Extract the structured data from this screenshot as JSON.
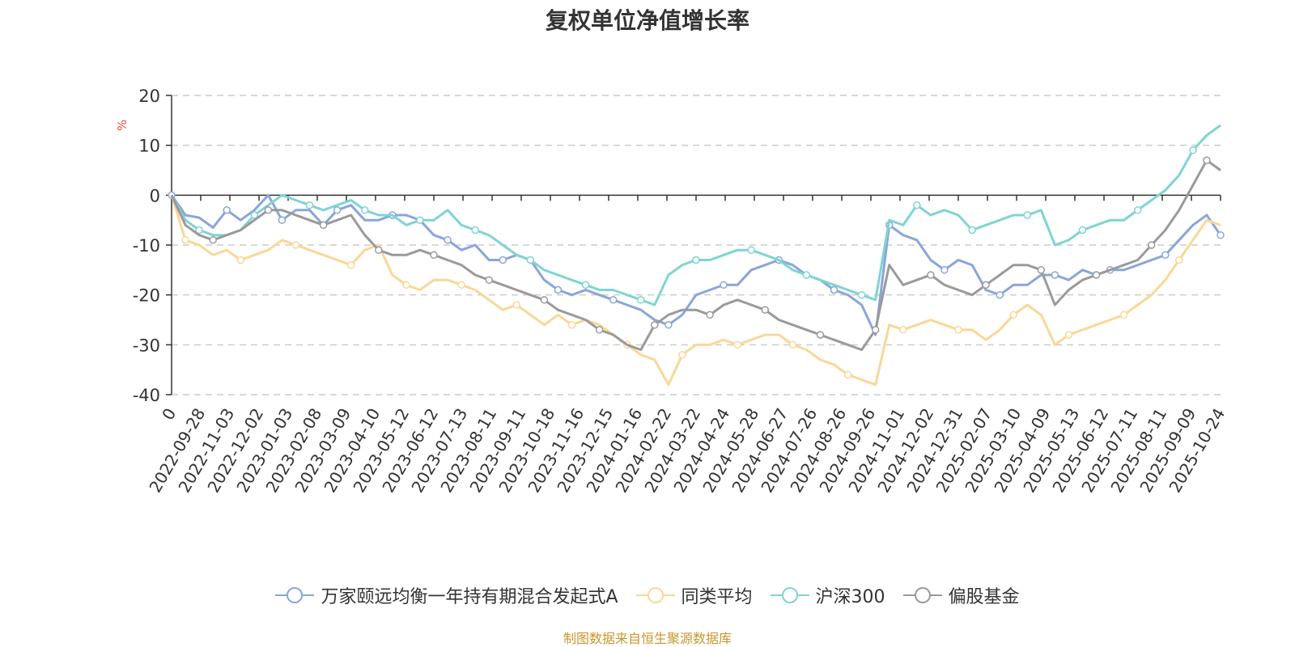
{
  "chart_data": {
    "type": "line",
    "title": "复权单位净值增长率",
    "ylabel": "%",
    "xlabel": "",
    "ylim": [
      -40,
      20
    ],
    "y_ticks": [
      20,
      10,
      0,
      -10,
      -20,
      -30,
      -40
    ],
    "x_tick_labels": [
      "0",
      "2022-09-28",
      "2022-11-03",
      "2022-12-02",
      "2023-01-03",
      "2023-02-08",
      "2023-03-09",
      "2023-04-10",
      "2023-05-12",
      "2023-06-12",
      "2023-07-13",
      "2023-08-11",
      "2023-09-11",
      "2023-10-18",
      "2023-11-16",
      "2023-12-15",
      "2024-01-16",
      "2024-02-22",
      "2024-03-22",
      "2024-04-24",
      "2024-05-28",
      "2024-06-27",
      "2024-07-26",
      "2024-08-26",
      "2024-09-26",
      "2024-11-01",
      "2024-12-02",
      "2024-12-31",
      "2025-02-07",
      "2025-03-10",
      "2025-04-09",
      "2025-05-13",
      "2025-06-12",
      "2025-07-11",
      "2025-08-11",
      "2025-09-09",
      "2025-10-24"
    ],
    "grid": "horizontal dashed",
    "legend_position": "bottom",
    "series": [
      {
        "name": "万家颐远均衡一年持有期混合发起式A",
        "color": "#8aa5db",
        "values": [
          0,
          -4,
          -4.5,
          -6.5,
          -3,
          -5,
          -3,
          0,
          -5,
          -3,
          -3,
          -6,
          -3,
          -2,
          -5,
          -5,
          -4,
          -4,
          -5,
          -8,
          -9,
          -11,
          -10,
          -13,
          -13,
          -12,
          -13,
          -17,
          -19,
          -20,
          -19,
          -20,
          -21,
          -22,
          -23,
          -25,
          -26,
          -24,
          -20,
          -19,
          -18,
          -18,
          -15,
          -14,
          -13,
          -14,
          -16,
          -17,
          -19,
          -20,
          -22,
          -28,
          -6,
          -8,
          -9,
          -13,
          -15,
          -13,
          -14,
          -19,
          -20,
          -18,
          -18,
          -16,
          -16,
          -17,
          -15,
          -16,
          -15,
          -15,
          -14,
          -13,
          -12,
          -9,
          -6,
          -4,
          -8
        ]
      },
      {
        "name": "同类平均",
        "color": "#fad797",
        "values": [
          0,
          -9,
          -10,
          -12,
          -11,
          -13,
          -12,
          -11,
          -9,
          -10,
          -11,
          -12,
          -13,
          -14,
          -11,
          -10,
          -16,
          -18,
          -19,
          -17,
          -17,
          -18,
          -19,
          -21,
          -23,
          -22,
          -24,
          -26,
          -24,
          -26,
          -25,
          -26,
          -28,
          -30,
          -32,
          -33,
          -38,
          -32,
          -30,
          -30,
          -29,
          -30,
          -29,
          -28,
          -28,
          -30,
          -31,
          -33,
          -34,
          -36,
          -37,
          -38,
          -26,
          -27,
          -26,
          -25,
          -26,
          -27,
          -27,
          -29,
          -27,
          -24,
          -22,
          -24,
          -30,
          -28,
          -27,
          -26,
          -25,
          -24,
          -22,
          -20,
          -17,
          -13,
          -9,
          -5,
          -6
        ]
      },
      {
        "name": "沪深300",
        "color": "#7fd4d4",
        "values": [
          0,
          -5,
          -7,
          -8,
          -8,
          -7,
          -4,
          -2,
          0,
          -1,
          -2,
          -3,
          -2,
          -1,
          -3,
          -4,
          -4,
          -6,
          -5,
          -5,
          -3,
          -6,
          -7,
          -8,
          -10,
          -12,
          -13,
          -15,
          -16,
          -17,
          -18,
          -19,
          -19,
          -20,
          -21,
          -22,
          -16,
          -14,
          -13,
          -13,
          -12,
          -11,
          -11,
          -12,
          -13,
          -15,
          -16,
          -17,
          -18,
          -19,
          -20,
          -21,
          -5,
          -6,
          -2,
          -4,
          -3,
          -4,
          -7,
          -6,
          -5,
          -4,
          -4,
          -3,
          -10,
          -9,
          -7,
          -6,
          -5,
          -5,
          -3,
          -1,
          1,
          4,
          9,
          12,
          14
        ]
      },
      {
        "name": "偏股基金",
        "color": "#9a9a9a",
        "values": [
          0,
          -6,
          -8,
          -9,
          -8,
          -7,
          -5,
          -3,
          -3,
          -4,
          -5,
          -6,
          -5,
          -4,
          -8,
          -11,
          -12,
          -12,
          -11,
          -12,
          -13,
          -14,
          -16,
          -17,
          -18,
          -19,
          -20,
          -21,
          -23,
          -24,
          -25,
          -27,
          -28,
          -30,
          -31,
          -26,
          -24,
          -23,
          -23,
          -24,
          -22,
          -21,
          -22,
          -23,
          -25,
          -26,
          -27,
          -28,
          -29,
          -30,
          -31,
          -27,
          -14,
          -18,
          -17,
          -16,
          -18,
          -19,
          -20,
          -18,
          -16,
          -14,
          -14,
          -15,
          -22,
          -19,
          -17,
          -16,
          -15,
          -14,
          -13,
          -10,
          -7,
          -3,
          2,
          7,
          5
        ]
      }
    ]
  },
  "source_note": "制图数据来自恒生聚源数据库"
}
